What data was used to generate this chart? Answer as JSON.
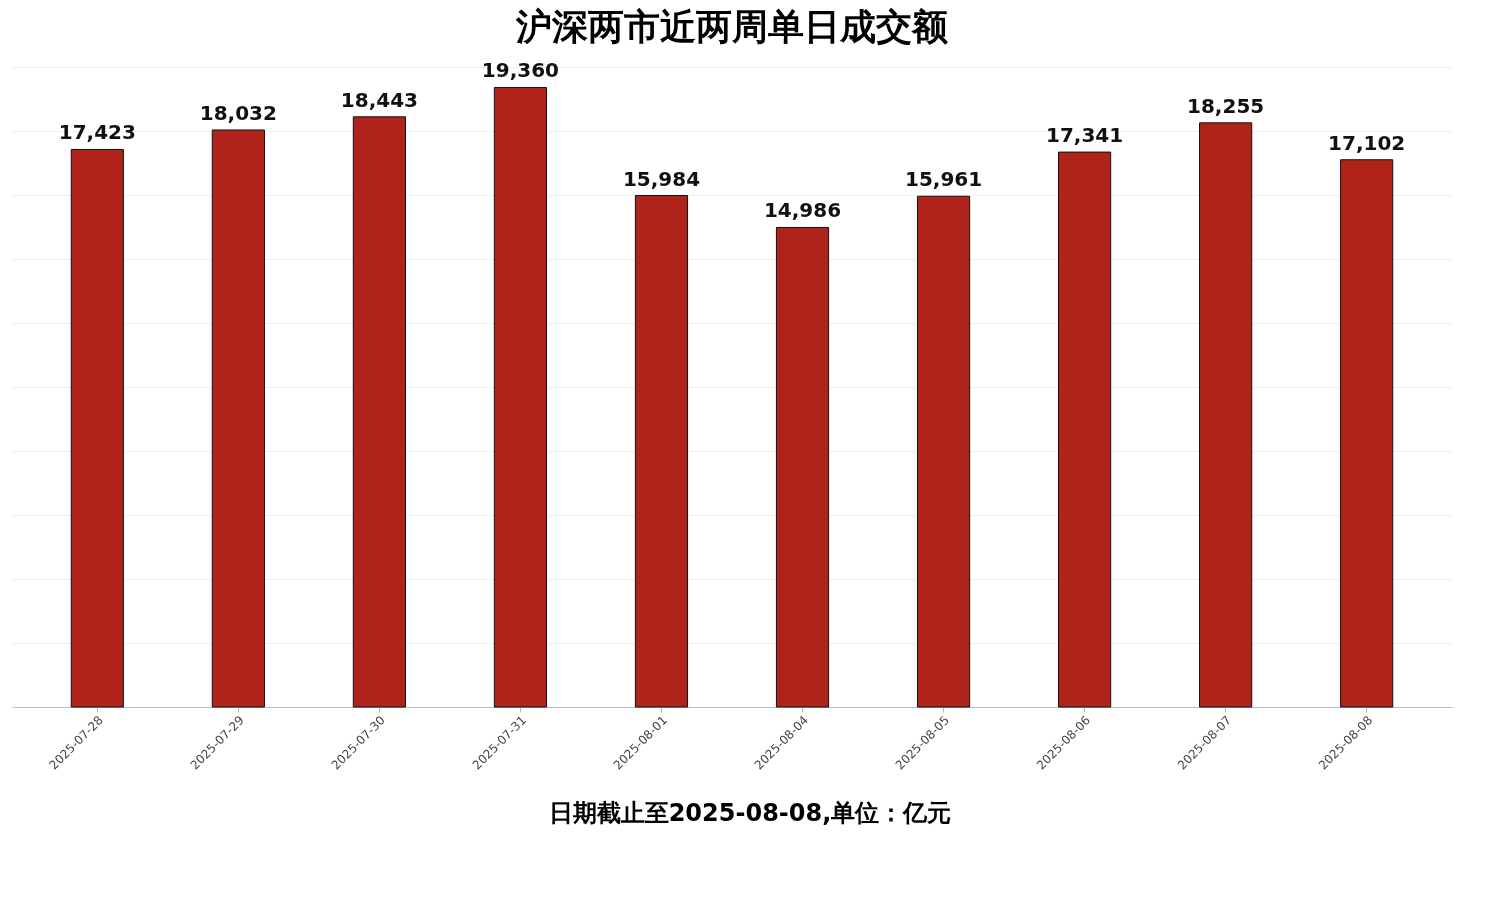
{
  "chart_data": {
    "type": "bar",
    "title": "沪深两市近两周单日成交额",
    "categories": [
      "2025-07-28",
      "2025-07-29",
      "2025-07-30",
      "2025-07-31",
      "2025-08-01",
      "2025-08-04",
      "2025-08-05",
      "2025-08-06",
      "2025-08-07",
      "2025-08-08"
    ],
    "values": [
      17423,
      18032,
      18443,
      19360,
      15984,
      14986,
      15961,
      17341,
      18255,
      17102
    ],
    "value_labels": [
      "17,423",
      "18,032",
      "18,443",
      "19,360",
      "15,984",
      "14,986",
      "15,961",
      "17,341",
      "18,255",
      "17,102"
    ],
    "color": "#b0231a",
    "grid": "y",
    "tick_labels": "x",
    "annotations": [
      "日期截止至2025-08-08,单位：亿元"
    ]
  }
}
